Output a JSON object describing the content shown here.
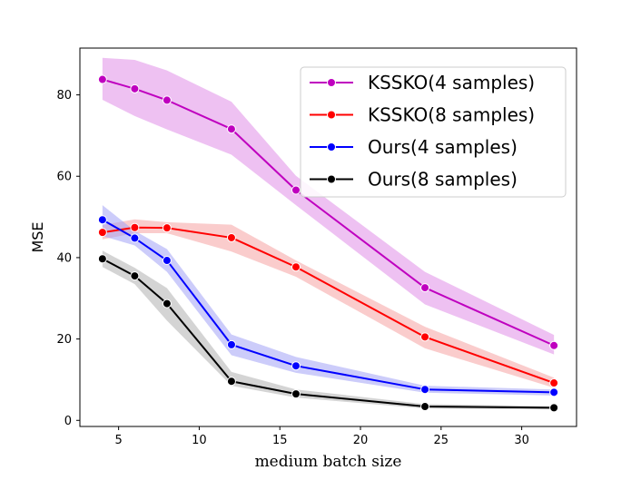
{
  "chart_data": {
    "type": "line",
    "title": "",
    "xlabel": "medium batch size",
    "ylabel": "MSE",
    "xlim": [
      2.6,
      33.4
    ],
    "ylim": [
      -1.5,
      91.5
    ],
    "xticks": [
      5,
      10,
      15,
      20,
      25,
      30
    ],
    "yticks": [
      0,
      20,
      40,
      60,
      80
    ],
    "x": [
      4,
      6,
      8,
      12,
      16,
      24,
      32
    ],
    "legend_position": "top-right",
    "grid": false,
    "series": [
      {
        "name": "KSSKO(4 samples)",
        "color": "#bf00bf",
        "band_color": "#e08ee8",
        "values": [
          83.8,
          81.5,
          78.7,
          71.6,
          56.6,
          32.6,
          18.4
        ],
        "lower": [
          78.8,
          74.8,
          71.5,
          65.3,
          52.9,
          28.5,
          16.2
        ],
        "upper": [
          89.1,
          88.6,
          86.0,
          78.3,
          60.1,
          36.5,
          21.0
        ]
      },
      {
        "name": "KSSKO(8 samples)",
        "color": "#ff0000",
        "band_color": "#f5a3a3",
        "values": [
          46.2,
          47.4,
          47.3,
          44.9,
          37.7,
          20.5,
          9.2
        ],
        "lower": [
          44.5,
          46.0,
          46.0,
          41.5,
          35.3,
          17.7,
          8.0
        ],
        "upper": [
          48.0,
          49.4,
          48.7,
          48.1,
          39.3,
          23.0,
          10.5
        ]
      },
      {
        "name": "Ours(4 samples)",
        "color": "#0000ff",
        "band_color": "#a3a3f5",
        "values": [
          49.3,
          44.8,
          39.3,
          18.6,
          13.4,
          7.6,
          6.9
        ],
        "lower": [
          45.3,
          43.0,
          36.5,
          16.0,
          11.7,
          6.8,
          6.1
        ],
        "upper": [
          52.9,
          46.6,
          42.1,
          21.1,
          15.6,
          8.5,
          7.6
        ]
      },
      {
        "name": "Ours(8 samples)",
        "color": "#000000",
        "band_color": "#b0b0b0",
        "values": [
          39.7,
          35.5,
          28.7,
          9.6,
          6.5,
          3.4,
          3.1
        ],
        "lower": [
          37.7,
          33.5,
          24.5,
          8.5,
          5.6,
          2.9,
          2.7
        ],
        "upper": [
          41.7,
          37.5,
          32.5,
          11.9,
          7.6,
          4.0,
          3.5
        ]
      }
    ]
  }
}
